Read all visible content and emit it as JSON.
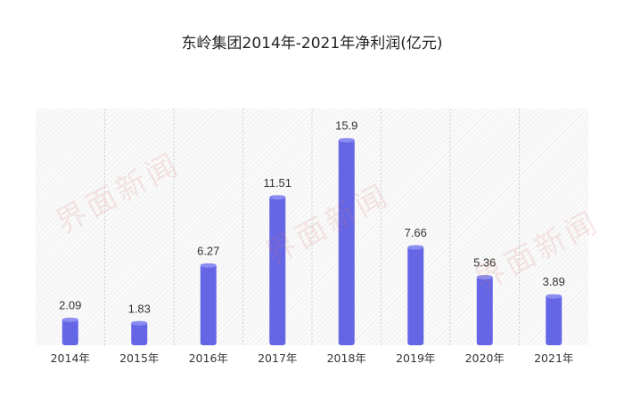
{
  "chart_data": {
    "type": "bar",
    "title": "东岭集团2014年-2021年净利润(亿元)",
    "xlabel": "",
    "ylabel": "",
    "categories": [
      "2014年",
      "2015年",
      "2016年",
      "2017年",
      "2018年",
      "2019年",
      "2020年",
      "2021年"
    ],
    "values": [
      2.09,
      1.83,
      6.27,
      11.51,
      15.9,
      7.66,
      5.36,
      3.89
    ],
    "value_labels": [
      "2.09",
      "1.83",
      "6.27",
      "11.51",
      "15.9",
      "7.66",
      "5.36",
      "3.89"
    ],
    "ylim": [
      0,
      18.2
    ],
    "grid": true,
    "bar_color": "#6466e6",
    "watermark": "界面新闻"
  }
}
